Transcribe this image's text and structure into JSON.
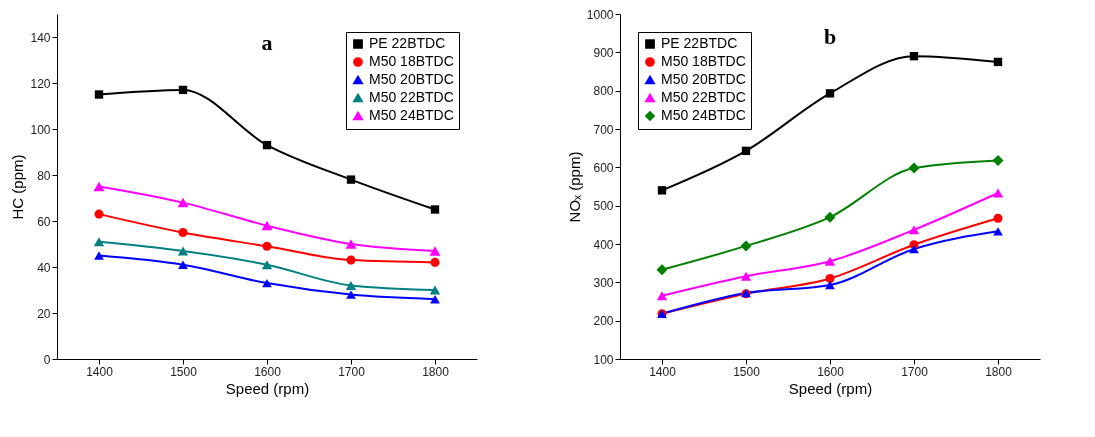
{
  "chart_data": [
    {
      "type": "line",
      "title": "a",
      "xlabel": "Speed (rpm)",
      "ylabel": "HC (ppm)",
      "x": [
        1400,
        1500,
        1600,
        1700,
        1800
      ],
      "xlim": [
        1350,
        1850
      ],
      "xticks": [
        1400,
        1500,
        1600,
        1700,
        1800
      ],
      "ylim": [
        0,
        150
      ],
      "yticks": [
        0,
        20,
        40,
        60,
        80,
        100,
        120,
        140
      ],
      "legend": "top right",
      "grid": false,
      "series": [
        {
          "name": "PE 22BTDC",
          "color": "#000000",
          "marker": "square",
          "values": [
            115,
            117,
            93,
            78,
            65
          ]
        },
        {
          "name": "M50 18BTDC",
          "color": "#ff0000",
          "marker": "circle",
          "values": [
            63,
            55,
            49,
            43,
            42
          ]
        },
        {
          "name": "M50 20BTDC",
          "color": "#0000ff",
          "marker": "triangle",
          "values": [
            45,
            41,
            33,
            28,
            26
          ]
        },
        {
          "name": "M50 22BTDC",
          "color": "#008080",
          "marker": "triangle",
          "values": [
            51,
            47,
            41,
            32,
            30
          ]
        },
        {
          "name": "M50 24BTDC",
          "color": "#ff00ff",
          "marker": "triangle",
          "values": [
            75,
            68,
            58,
            50,
            47
          ]
        }
      ]
    },
    {
      "type": "line",
      "title": "b",
      "xlabel": "Speed (rpm)",
      "ylabel": "NOₓ (ppm)",
      "x": [
        1400,
        1500,
        1600,
        1700,
        1800
      ],
      "xlim": [
        1350,
        1850
      ],
      "xticks": [
        1400,
        1500,
        1600,
        1700,
        1800
      ],
      "ylim": [
        100,
        1000
      ],
      "yticks": [
        100,
        200,
        300,
        400,
        500,
        600,
        700,
        800,
        900,
        1000
      ],
      "legend": "top left",
      "grid": false,
      "series": [
        {
          "name": "PE 22BTDC",
          "color": "#000000",
          "marker": "square",
          "values": [
            540,
            643,
            793,
            890,
            875
          ]
        },
        {
          "name": "M50 18BTDC",
          "color": "#ff0000",
          "marker": "circle",
          "values": [
            218,
            270,
            310,
            398,
            467
          ]
        },
        {
          "name": "M50 20BTDC",
          "color": "#0000ff",
          "marker": "triangle",
          "values": [
            218,
            272,
            293,
            387,
            433
          ]
        },
        {
          "name": "M50 22BTDC",
          "color": "#ff00ff",
          "marker": "triangle",
          "values": [
            265,
            316,
            355,
            437,
            533
          ]
        },
        {
          "name": "M50 24BTDC",
          "color": "#008000",
          "marker": "diamond",
          "values": [
            333,
            395,
            470,
            598,
            618
          ]
        }
      ]
    }
  ]
}
